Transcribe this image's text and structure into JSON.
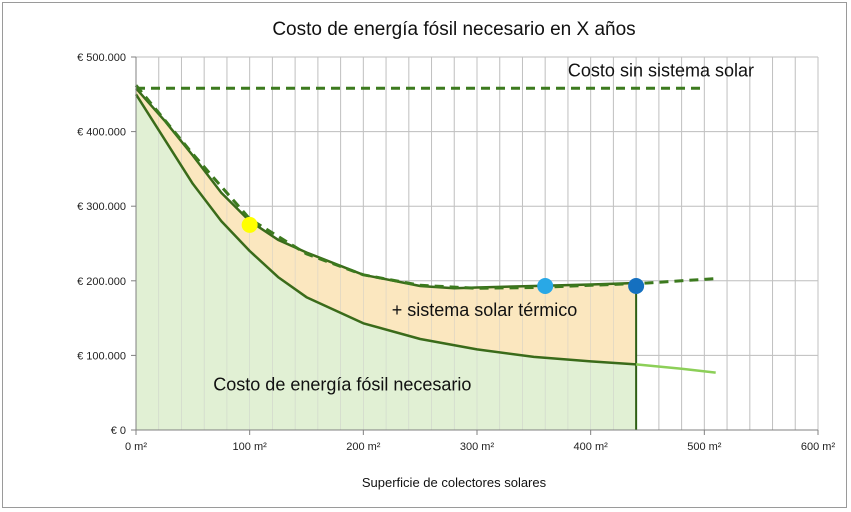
{
  "chart_data": {
    "type": "area",
    "title": "Costo de energía fósil necesario en X años",
    "xlabel": "Superficie de colectores solares",
    "ylabel": "",
    "xlim": [
      0,
      600
    ],
    "ylim": [
      0,
      500000
    ],
    "x_ticks": [
      0,
      100,
      200,
      300,
      400,
      500,
      600
    ],
    "x_tick_labels": [
      "0 m²",
      "100 m²",
      "200 m²",
      "300 m²",
      "400 m²",
      "500 m²",
      "600 m²"
    ],
    "y_ticks": [
      0,
      100000,
      200000,
      300000,
      400000,
      500000
    ],
    "y_tick_labels": [
      "€ 0",
      "€ 100.000",
      "€ 200.000",
      "€ 300.000",
      "€ 400.000",
      "€ 500.000"
    ],
    "grid": true,
    "series": [
      {
        "name": "Costo sin sistema solar",
        "style": "dashed",
        "color": "#3c7a1e",
        "x": [
          0,
          500
        ],
        "y": [
          458000,
          458000
        ]
      },
      {
        "name": "+ sistema solar térmico",
        "style": "solid",
        "color": "#3a6b1a",
        "fill": "#fbe7bf",
        "x": [
          0,
          25,
          50,
          75,
          100,
          125,
          150,
          200,
          250,
          280,
          300,
          350,
          400,
          440
        ],
        "y": [
          458000,
          415000,
          368000,
          318000,
          280000,
          255000,
          238000,
          208000,
          193000,
          190000,
          191000,
          193000,
          195000,
          197000
        ]
      },
      {
        "name": "",
        "style": "dashed",
        "color": "#3c7a1e",
        "x": [
          0,
          50,
          100,
          150,
          200,
          250,
          300,
          350,
          400,
          450,
          510
        ],
        "y": [
          462000,
          370000,
          283000,
          236000,
          208000,
          194000,
          190000,
          191000,
          194000,
          197000,
          203000
        ]
      },
      {
        "name": "Costo de energía fósil necesario",
        "style": "solid",
        "color": "#3a6b1a",
        "fill": "#e1f0d4",
        "x": [
          0,
          25,
          50,
          75,
          100,
          125,
          150,
          200,
          250,
          300,
          350,
          400,
          440
        ],
        "y": [
          450000,
          390000,
          330000,
          280000,
          240000,
          205000,
          178000,
          143000,
          122000,
          108000,
          98000,
          92000,
          88000
        ]
      },
      {
        "name": "",
        "style": "solid",
        "color": "#8ccf58",
        "x": [
          440,
          480,
          510
        ],
        "y": [
          88000,
          82000,
          77000
        ]
      }
    ],
    "markers": [
      {
        "x": 100,
        "y": 275000,
        "color": "#ffff00"
      },
      {
        "x": 360,
        "y": 193000,
        "color": "#29a8e6"
      },
      {
        "x": 440,
        "y": 193000,
        "color": "#1570c0"
      }
    ],
    "annotations": [
      {
        "text": "Costo sin sistema solar",
        "x": 380,
        "y": 474000
      },
      {
        "text": "+ sistema solar térmico",
        "x": 225,
        "y": 153000
      },
      {
        "text": "Costo de energía fósil necesario",
        "x": 68,
        "y": 53000
      }
    ]
  }
}
